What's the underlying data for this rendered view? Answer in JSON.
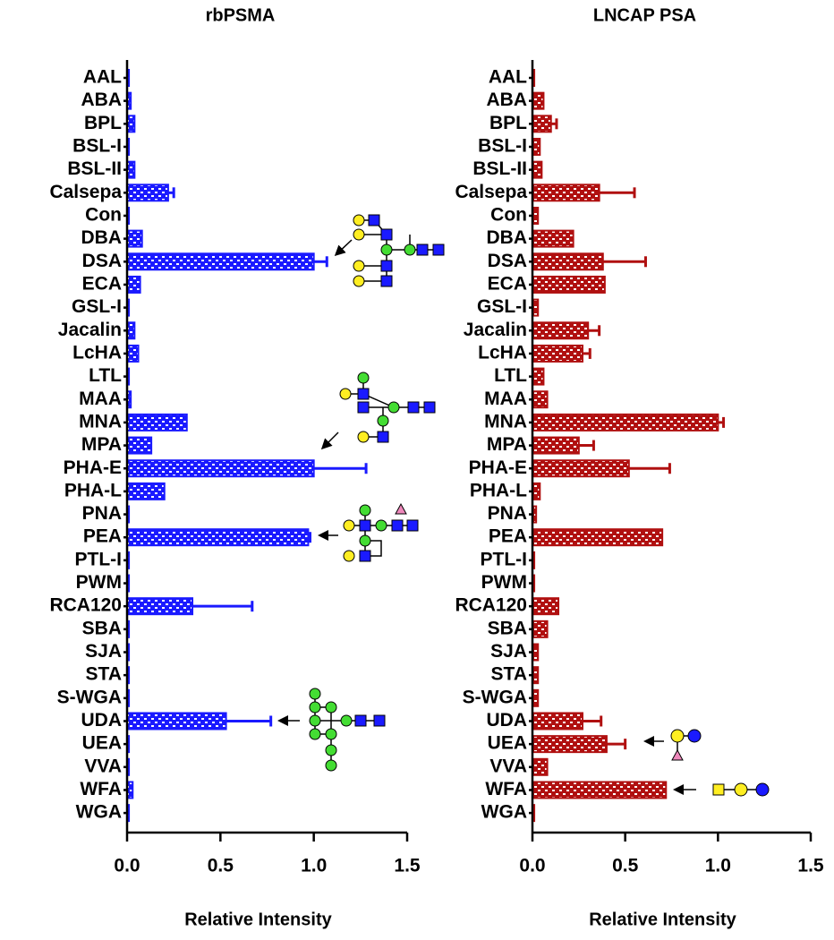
{
  "chart_data": [
    {
      "type": "bar",
      "orientation": "horizontal",
      "title": "rbPSMA",
      "xlabel": "Relative Intensity",
      "color": "#1a1aff",
      "categories": [
        "AAL",
        "ABA",
        "BPL",
        "BSL-I",
        "BSL-II",
        "Calsepa",
        "Con",
        "DBA",
        "DSA",
        "ECA",
        "GSL-I",
        "Jacalin",
        "LcHA",
        "LTL",
        "MAA",
        "MNA",
        "MPA",
        "PHA-E",
        "PHA-L",
        "PNA",
        "PEA",
        "PTL-I",
        "PWM",
        "RCA120",
        "SBA",
        "SJA",
        "STA",
        "S-WGA",
        "UDA",
        "UEA",
        "VVA",
        "WFA",
        "WGA"
      ],
      "values": [
        0.01,
        0.02,
        0.04,
        0.01,
        0.04,
        0.22,
        0.01,
        0.08,
        1.0,
        0.07,
        0.01,
        0.04,
        0.06,
        0.01,
        0.02,
        0.32,
        0.13,
        1.0,
        0.2,
        0.01,
        0.97,
        0.01,
        0.01,
        0.35,
        0.01,
        0.01,
        0.01,
        0.01,
        0.53,
        0.01,
        0.01,
        0.03,
        0.01
      ],
      "errors": [
        null,
        null,
        null,
        null,
        null,
        0.03,
        null,
        null,
        0.07,
        null,
        null,
        null,
        null,
        null,
        null,
        null,
        null,
        0.28,
        null,
        null,
        0.01,
        null,
        null,
        0.32,
        null,
        null,
        null,
        null,
        0.24,
        null,
        null,
        null,
        null
      ],
      "xlim": [
        0,
        1.5
      ],
      "xticks": [
        {
          "value": 0,
          "label": "0.0"
        },
        0.5,
        {
          "value": 1,
          "label": "1.0"
        },
        1.5
      ]
    },
    {
      "type": "bar",
      "orientation": "horizontal",
      "title": "LNCAP PSA",
      "xlabel": "Relative Intensity",
      "color": "#b01010",
      "categories": [
        "AAL",
        "ABA",
        "BPL",
        "BSL-I",
        "BSL-II",
        "Calsepa",
        "Con",
        "DBA",
        "DSA",
        "ECA",
        "GSL-I",
        "Jacalin",
        "LcHA",
        "LTL",
        "MAA",
        "MNA",
        "MPA",
        "PHA-E",
        "PHA-L",
        "PNA",
        "PEA",
        "PTL-I",
        "PWM",
        "RCA120",
        "SBA",
        "SJA",
        "STA",
        "S-WGA",
        "UDA",
        "UEA",
        "VVA",
        "WFA",
        "WGA"
      ],
      "values": [
        0.01,
        0.06,
        0.1,
        0.04,
        0.05,
        0.36,
        0.03,
        0.22,
        0.38,
        0.39,
        0.03,
        0.3,
        0.27,
        0.06,
        0.08,
        1.0,
        0.25,
        0.52,
        0.04,
        0.02,
        0.7,
        0.01,
        0.01,
        0.14,
        0.08,
        0.03,
        0.03,
        0.03,
        0.27,
        0.4,
        0.08,
        0.72,
        0.01
      ],
      "errors": [
        null,
        null,
        0.03,
        null,
        null,
        0.19,
        null,
        null,
        0.23,
        null,
        null,
        0.06,
        0.04,
        null,
        null,
        0.03,
        0.08,
        0.22,
        null,
        null,
        null,
        null,
        null,
        null,
        null,
        null,
        null,
        null,
        0.1,
        0.1,
        null,
        null,
        null
      ],
      "xlim": [
        0,
        1.5
      ],
      "xticks": [
        {
          "value": 0,
          "label": "0.0"
        },
        0.5,
        {
          "value": 1,
          "label": "1.0"
        },
        1.5
      ]
    }
  ]
}
